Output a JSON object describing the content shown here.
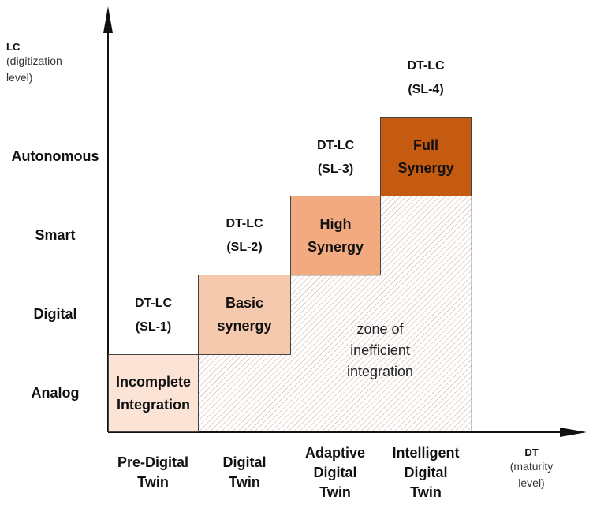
{
  "y_axis": {
    "title": "LC",
    "subtitle_line1": "(digitization",
    "subtitle_line2": "level)",
    "levels": [
      "Analog",
      "Digital",
      "Smart",
      "Autonomous"
    ]
  },
  "x_axis": {
    "title": "DT",
    "subtitle_line1": "(maturity",
    "subtitle_line2": "level)",
    "levels": [
      {
        "line1": "Pre-Digital",
        "line2": "Twin",
        "line3": ""
      },
      {
        "line1": "Digital",
        "line2": "Twin",
        "line3": ""
      },
      {
        "line1": "Adaptive",
        "line2": "Digital",
        "line3": "Twin"
      },
      {
        "line1": "Intelligent",
        "line2": "Digital",
        "line3": "Twin"
      }
    ]
  },
  "boxes": [
    {
      "line1": "Incomplete",
      "line2": "Integration",
      "color": "#fbe3d6"
    },
    {
      "line1": "Basic",
      "line2": "synergy",
      "color": "#f5c9ae"
    },
    {
      "line1": "High",
      "line2": "Synergy",
      "color": "#f2ab80"
    },
    {
      "line1": "Full",
      "line2": "Synergy",
      "color": "#c55a11"
    }
  ],
  "synergy_labels": [
    {
      "line1": "DT-LC",
      "line2": "(SL-1)"
    },
    {
      "line1": "DT-LC",
      "line2": "(SL-2)"
    },
    {
      "line1": "DT-LC",
      "line2": "(SL-3)"
    },
    {
      "line1": "DT-LC",
      "line2": "(SL-4)"
    }
  ],
  "zone": {
    "line1": "zone of",
    "line2": "inefficient",
    "line3": "integration",
    "hatch_color": "#c8a899"
  }
}
